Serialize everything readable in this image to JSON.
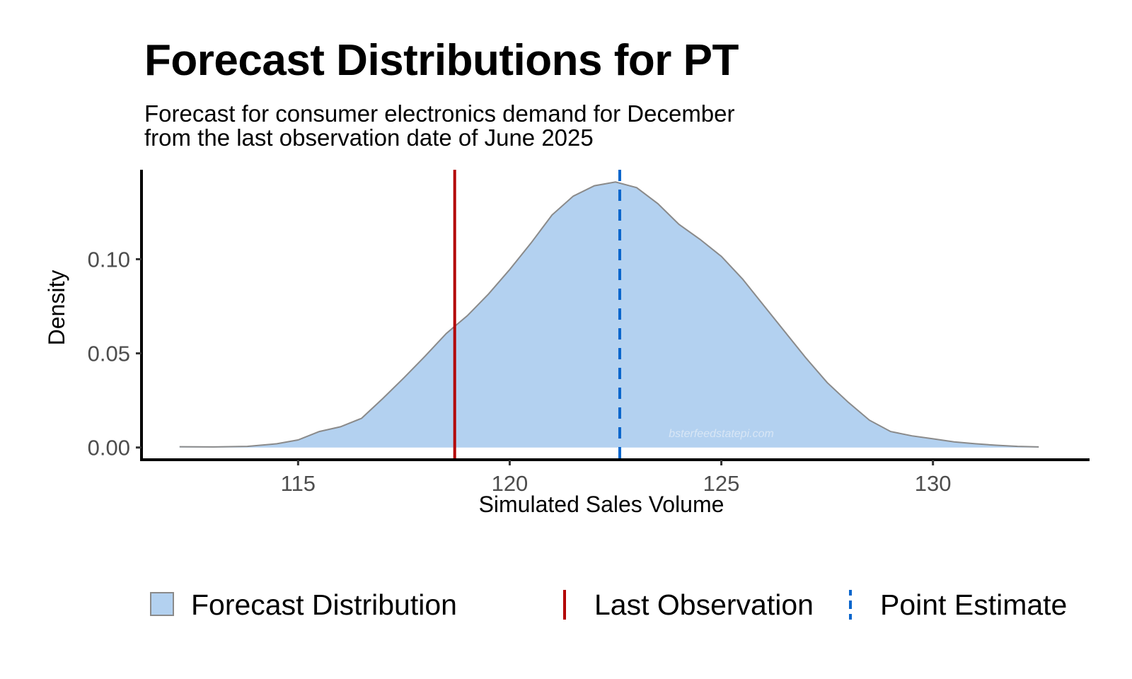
{
  "title": "Forecast Distributions for PT",
  "subtitle": {
    "line1": "Forecast for consumer electronics demand for December",
    "line2": "from the last observation date of June 2025"
  },
  "watermark": "bsterfeedstatepi.com",
  "colors": {
    "fill": "#b3d1f0",
    "outline": "#8a8a8a",
    "last_observation": "#b30000",
    "point_estimate": "#0a66cc"
  },
  "legend": {
    "items": [
      {
        "label": "Forecast Distribution",
        "key": "filled-box"
      },
      {
        "label": "Last Observation",
        "key": "solid-red-line"
      },
      {
        "label": "Point Estimate",
        "key": "dashed-blue-line"
      }
    ]
  },
  "chart_data": {
    "type": "area",
    "title": "Forecast Distributions for PT",
    "xlabel": "Simulated Sales Volume",
    "ylabel": "Density",
    "xlim": [
      111.3,
      133.7
    ],
    "ylim": [
      -0.0065,
      0.1475
    ],
    "x_ticks": [
      115,
      120,
      125,
      130
    ],
    "x_tick_labels": [
      "115",
      "120",
      "125",
      "130"
    ],
    "y_ticks": [
      0.0,
      0.05,
      0.1
    ],
    "y_tick_labels": [
      "0.00",
      "0.05",
      "0.10"
    ],
    "grid": false,
    "legend_position": "bottom",
    "series": [
      {
        "name": "Forecast Distribution",
        "x": [
          112.2,
          113.0,
          113.8,
          114.5,
          115.0,
          115.5,
          116.0,
          116.5,
          117.0,
          117.5,
          118.0,
          118.5,
          119.0,
          119.5,
          120.0,
          120.5,
          121.0,
          121.5,
          122.0,
          122.5,
          123.0,
          123.5,
          124.0,
          124.5,
          125.0,
          125.5,
          126.0,
          126.5,
          127.0,
          127.5,
          128.0,
          128.5,
          129.0,
          129.5,
          130.0,
          130.5,
          131.0,
          131.5,
          132.0,
          132.5
        ],
        "y": [
          0.0004,
          0.0003,
          0.0006,
          0.002,
          0.004,
          0.0085,
          0.011,
          0.0155,
          0.026,
          0.037,
          0.0485,
          0.0605,
          0.07,
          0.0815,
          0.0945,
          0.1085,
          0.1235,
          0.1335,
          0.139,
          0.141,
          0.138,
          0.1295,
          0.1185,
          0.1105,
          0.1015,
          0.0895,
          0.0755,
          0.0615,
          0.0475,
          0.0345,
          0.024,
          0.0145,
          0.0085,
          0.0062,
          0.0046,
          0.003,
          0.002,
          0.0012,
          0.0006,
          0.0003
        ]
      }
    ],
    "vlines": [
      {
        "name": "Last Observation",
        "x": 118.7,
        "style": "solid"
      },
      {
        "name": "Point Estimate",
        "x": 122.6,
        "style": "dashed"
      }
    ]
  }
}
